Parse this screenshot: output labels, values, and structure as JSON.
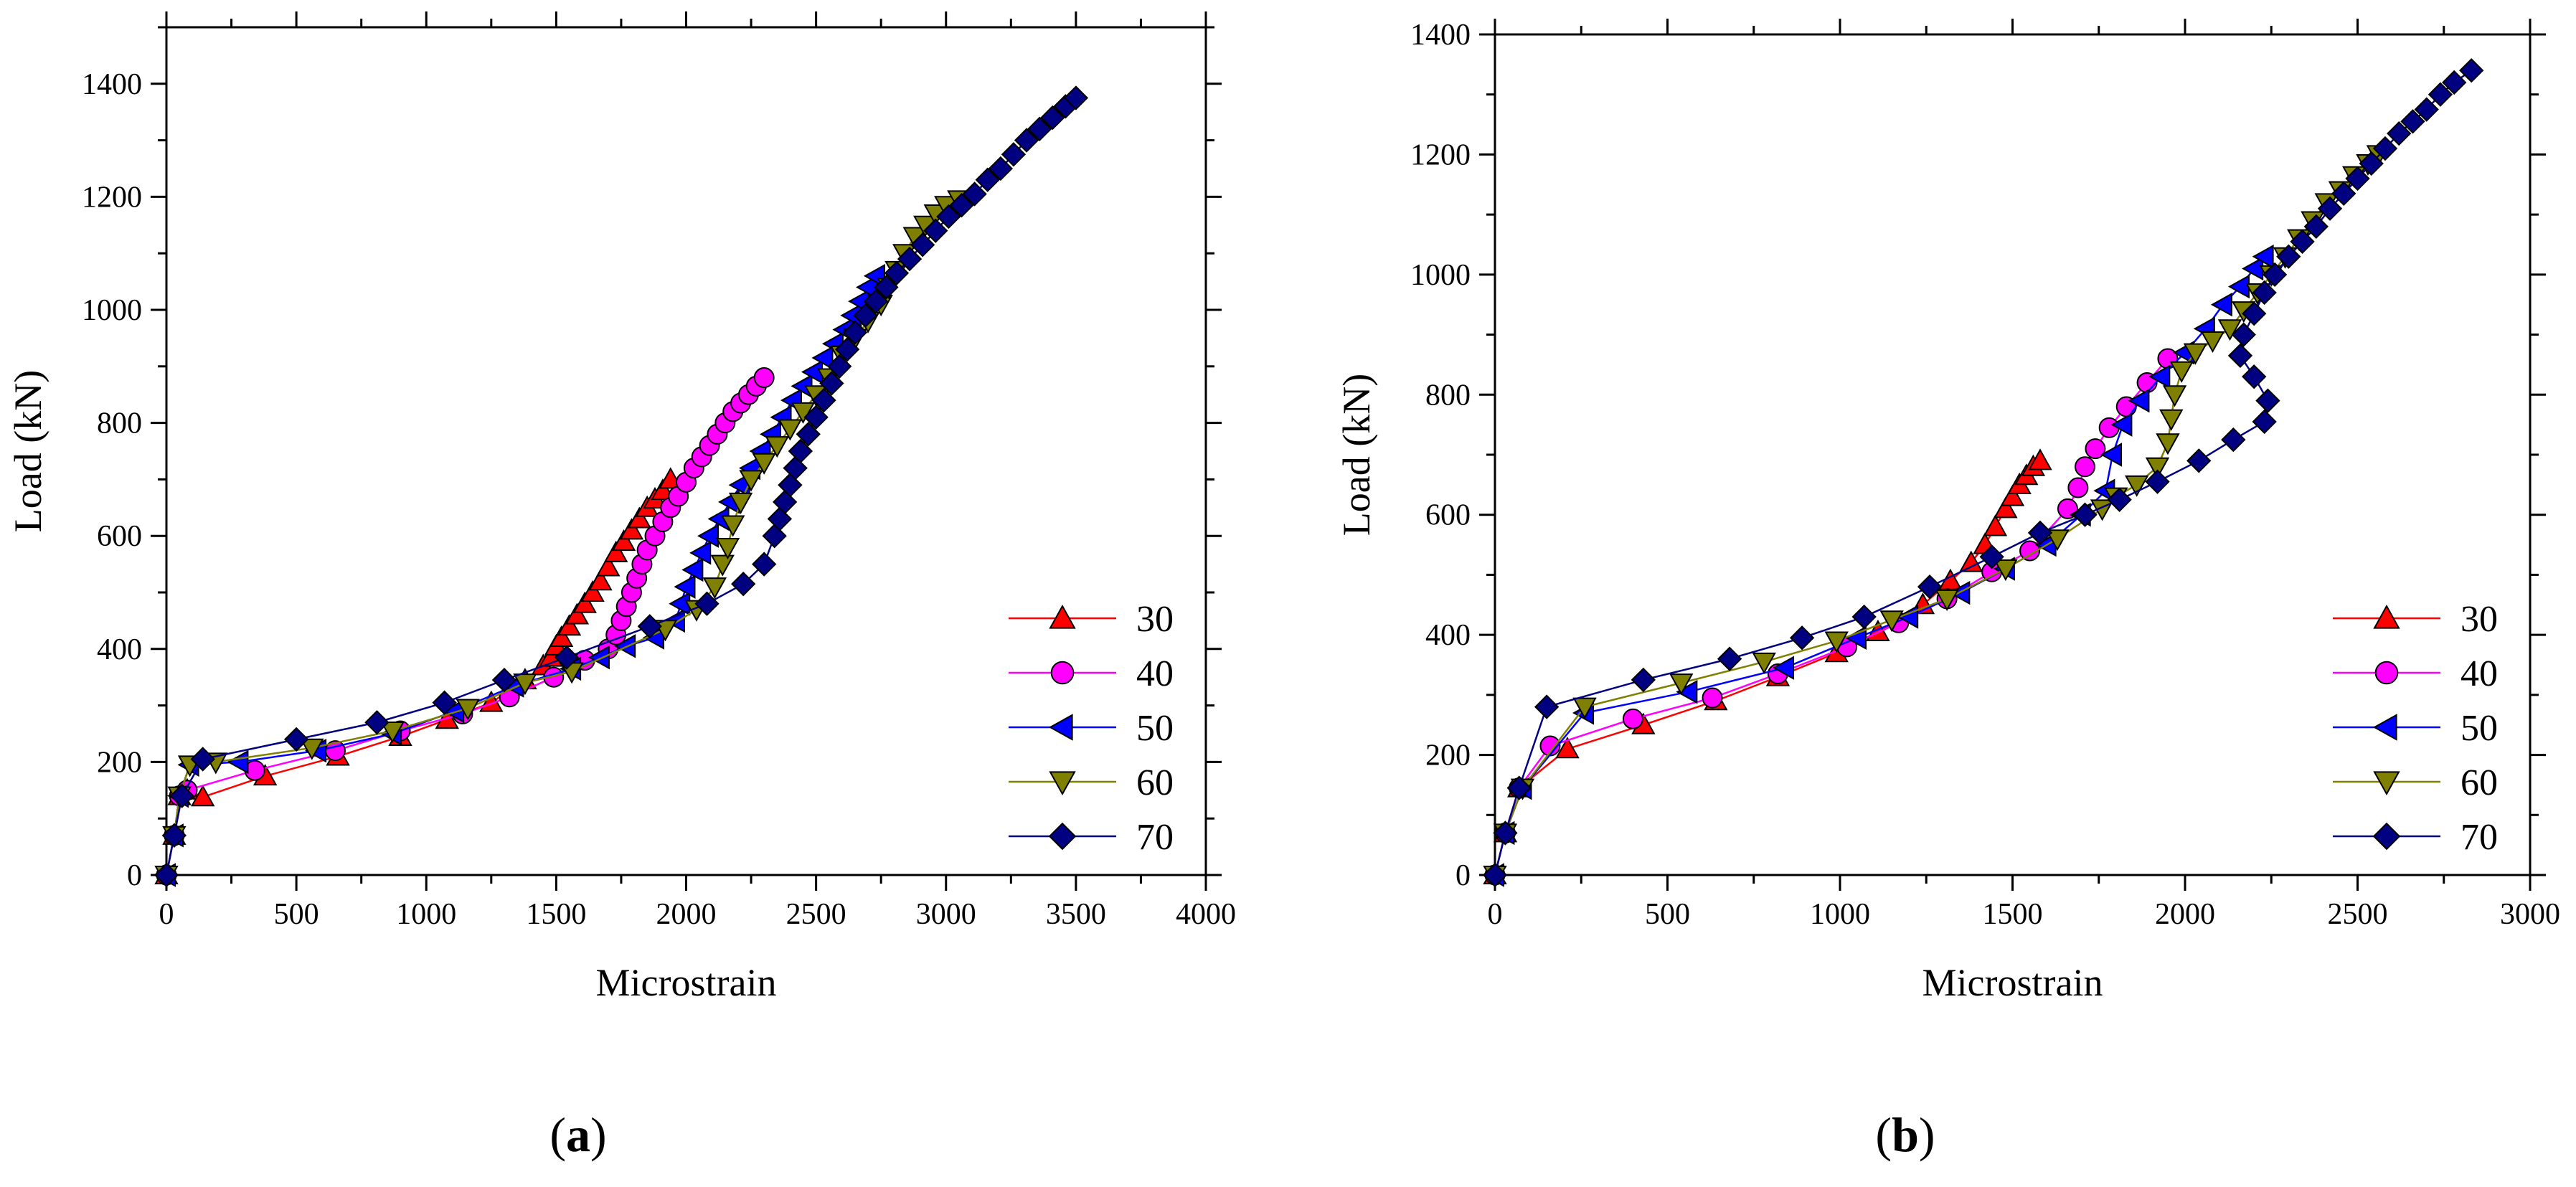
{
  "series_styles": [
    {
      "name": "30",
      "color": "#ff0000",
      "line": "#ff0000",
      "marker": "triangle-up"
    },
    {
      "name": "40",
      "color": "#ff00ff",
      "line": "#ff00ff",
      "marker": "circle"
    },
    {
      "name": "50",
      "color": "#0000ff",
      "line": "#0000ff",
      "marker": "triangle-left"
    },
    {
      "name": "60",
      "color": "#808000",
      "line": "#808000",
      "marker": "triangle-down"
    },
    {
      "name": "70",
      "color": "#000080",
      "line": "#000080",
      "marker": "diamond"
    }
  ],
  "chart_data": [
    {
      "type": "line",
      "panel": "a",
      "panel_label": "(a)",
      "xlabel": "Microstrain",
      "ylabel": "Load (kN)",
      "xlim": [
        0,
        4000
      ],
      "ylim": [
        0,
        1500
      ],
      "xticks": [
        0,
        500,
        1000,
        1500,
        2000,
        2500,
        3000,
        3500,
        4000
      ],
      "yticks": [
        0,
        200,
        400,
        600,
        800,
        1000,
        1200,
        1400
      ],
      "legend_position": "bottom-right",
      "series": [
        {
          "name": "30",
          "x": [
            0,
            30,
            50,
            80,
            140,
            380,
            660,
            900,
            1080,
            1250,
            1380,
            1450,
            1480,
            1500,
            1520,
            1550,
            1580,
            1610,
            1640,
            1670,
            1700,
            1730,
            1760,
            1790,
            1820,
            1850,
            1880,
            1910,
            1940
          ],
          "y": [
            0,
            70,
            140,
            150,
            138,
            175,
            210,
            245,
            275,
            305,
            345,
            370,
            385,
            405,
            420,
            440,
            460,
            480,
            500,
            520,
            545,
            570,
            590,
            610,
            630,
            650,
            665,
            680,
            700
          ]
        },
        {
          "name": "40",
          "x": [
            0,
            30,
            50,
            80,
            340,
            650,
            900,
            1140,
            1320,
            1490,
            1610,
            1700,
            1730,
            1750,
            1770,
            1790,
            1810,
            1830,
            1850,
            1880,
            1910,
            1940,
            1970,
            2000,
            2030,
            2060,
            2090,
            2120,
            2150,
            2180,
            2210,
            2240,
            2270,
            2300
          ],
          "y": [
            0,
            70,
            140,
            150,
            185,
            220,
            255,
            285,
            315,
            350,
            380,
            400,
            425,
            450,
            475,
            500,
            525,
            550,
            575,
            600,
            625,
            650,
            670,
            695,
            720,
            740,
            760,
            780,
            800,
            820,
            835,
            850,
            865,
            880
          ]
        },
        {
          "name": "50",
          "x": [
            0,
            30,
            50,
            90,
            280,
            580,
            870,
            1110,
            1340,
            1560,
            1670,
            1770,
            1880,
            1960,
            1980,
            2000,
            2030,
            2060,
            2090,
            2130,
            2170,
            2210,
            2250,
            2290,
            2330,
            2370,
            2410,
            2450,
            2490,
            2530,
            2570,
            2610,
            2640,
            2670,
            2700,
            2730
          ],
          "y": [
            0,
            70,
            140,
            195,
            200,
            220,
            250,
            290,
            335,
            365,
            385,
            405,
            420,
            450,
            480,
            510,
            540,
            570,
            600,
            630,
            660,
            690,
            720,
            750,
            780,
            810,
            840,
            865,
            890,
            915,
            940,
            965,
            990,
            1015,
            1040,
            1060
          ]
        },
        {
          "name": "60",
          "x": [
            0,
            30,
            50,
            90,
            190,
            560,
            870,
            1160,
            1380,
            1560,
            1920,
            2040,
            2110,
            2140,
            2160,
            2180,
            2210,
            2250,
            2300,
            2350,
            2400,
            2450,
            2500,
            2550,
            2600,
            2650,
            2700,
            2750,
            2780,
            2810,
            2840,
            2880,
            2920,
            2960,
            3000,
            3050
          ],
          "y": [
            0,
            70,
            140,
            195,
            200,
            225,
            255,
            295,
            340,
            360,
            435,
            470,
            510,
            550,
            580,
            620,
            660,
            700,
            730,
            760,
            790,
            820,
            850,
            880,
            920,
            950,
            980,
            1010,
            1040,
            1070,
            1100,
            1130,
            1150,
            1170,
            1185,
            1195
          ]
        },
        {
          "name": "70",
          "x": [
            0,
            30,
            60,
            140,
            500,
            810,
            1070,
            1300,
            1540,
            1860,
            2080,
            2220,
            2300,
            2340,
            2360,
            2380,
            2400,
            2420,
            2440,
            2470,
            2500,
            2530,
            2560,
            2590,
            2620,
            2650,
            2690,
            2730,
            2770,
            2810,
            2860,
            2910,
            2960,
            3010,
            3060,
            3110,
            3160,
            3210,
            3260,
            3310,
            3360,
            3410,
            3460,
            3500
          ],
          "y": [
            0,
            70,
            140,
            205,
            240,
            270,
            305,
            345,
            385,
            440,
            480,
            515,
            550,
            600,
            630,
            660,
            690,
            720,
            750,
            780,
            810,
            840,
            870,
            900,
            930,
            960,
            990,
            1015,
            1040,
            1065,
            1090,
            1115,
            1140,
            1165,
            1185,
            1205,
            1230,
            1250,
            1275,
            1300,
            1320,
            1340,
            1360,
            1375
          ]
        }
      ]
    },
    {
      "type": "line",
      "panel": "b",
      "panel_label": "(b)",
      "xlabel": "Microstrain",
      "ylabel": "Load (kN)",
      "xlim": [
        0,
        3000
      ],
      "ylim": [
        0,
        1400
      ],
      "xticks": [
        0,
        500,
        1000,
        1500,
        2000,
        2500,
        3000
      ],
      "yticks": [
        0,
        200,
        400,
        600,
        800,
        1000,
        1200,
        1400
      ],
      "legend_position": "bottom-right",
      "series": [
        {
          "name": "30",
          "x": [
            0,
            30,
            70,
            210,
            430,
            640,
            820,
            990,
            1110,
            1240,
            1320,
            1380,
            1420,
            1450,
            1480,
            1500,
            1520,
            1540,
            1560,
            1580
          ],
          "y": [
            0,
            70,
            145,
            210,
            250,
            290,
            330,
            370,
            405,
            450,
            490,
            520,
            550,
            580,
            610,
            630,
            650,
            665,
            680,
            690
          ]
        },
        {
          "name": "40",
          "x": [
            0,
            30,
            70,
            160,
            400,
            630,
            820,
            1020,
            1170,
            1310,
            1440,
            1550,
            1660,
            1690,
            1710,
            1740,
            1780,
            1830,
            1890,
            1950
          ],
          "y": [
            0,
            70,
            145,
            215,
            260,
            295,
            335,
            380,
            420,
            460,
            505,
            540,
            610,
            645,
            680,
            710,
            745,
            780,
            820,
            860
          ]
        },
        {
          "name": "50",
          "x": [
            0,
            30,
            80,
            260,
            560,
            840,
            1050,
            1200,
            1350,
            1480,
            1600,
            1700,
            1770,
            1790,
            1820,
            1870,
            1930,
            2000,
            2060,
            2110,
            2160,
            2200,
            2230
          ],
          "y": [
            0,
            70,
            145,
            270,
            305,
            345,
            395,
            430,
            470,
            510,
            550,
            600,
            640,
            700,
            750,
            790,
            830,
            870,
            910,
            950,
            980,
            1010,
            1030
          ]
        },
        {
          "name": "60",
          "x": [
            0,
            30,
            80,
            260,
            540,
            780,
            990,
            1150,
            1310,
            1480,
            1630,
            1760,
            1800,
            1860,
            1920,
            1950,
            1960,
            1970,
            1990,
            2030,
            2080,
            2130,
            2170,
            2210,
            2250,
            2290,
            2330,
            2370,
            2410,
            2450,
            2490,
            2530,
            2560
          ],
          "y": [
            0,
            70,
            145,
            280,
            320,
            355,
            390,
            425,
            460,
            510,
            560,
            610,
            630,
            650,
            680,
            720,
            760,
            800,
            840,
            870,
            890,
            910,
            940,
            970,
            1000,
            1030,
            1060,
            1090,
            1120,
            1140,
            1165,
            1185,
            1200
          ]
        },
        {
          "name": "70",
          "x": [
            0,
            30,
            70,
            150,
            430,
            680,
            890,
            1070,
            1260,
            1440,
            1580,
            1710,
            1810,
            1920,
            2040,
            2140,
            2230,
            2240,
            2200,
            2160,
            2170,
            2200,
            2230,
            2260,
            2300,
            2340,
            2380,
            2420,
            2460,
            2500,
            2540,
            2580,
            2620,
            2660,
            2700,
            2740,
            2780,
            2830
          ],
          "y": [
            0,
            70,
            145,
            280,
            325,
            360,
            395,
            430,
            480,
            530,
            570,
            600,
            625,
            655,
            690,
            725,
            755,
            790,
            830,
            865,
            900,
            935,
            970,
            1000,
            1030,
            1055,
            1080,
            1110,
            1135,
            1160,
            1185,
            1210,
            1235,
            1255,
            1275,
            1300,
            1320,
            1340
          ]
        }
      ]
    }
  ]
}
